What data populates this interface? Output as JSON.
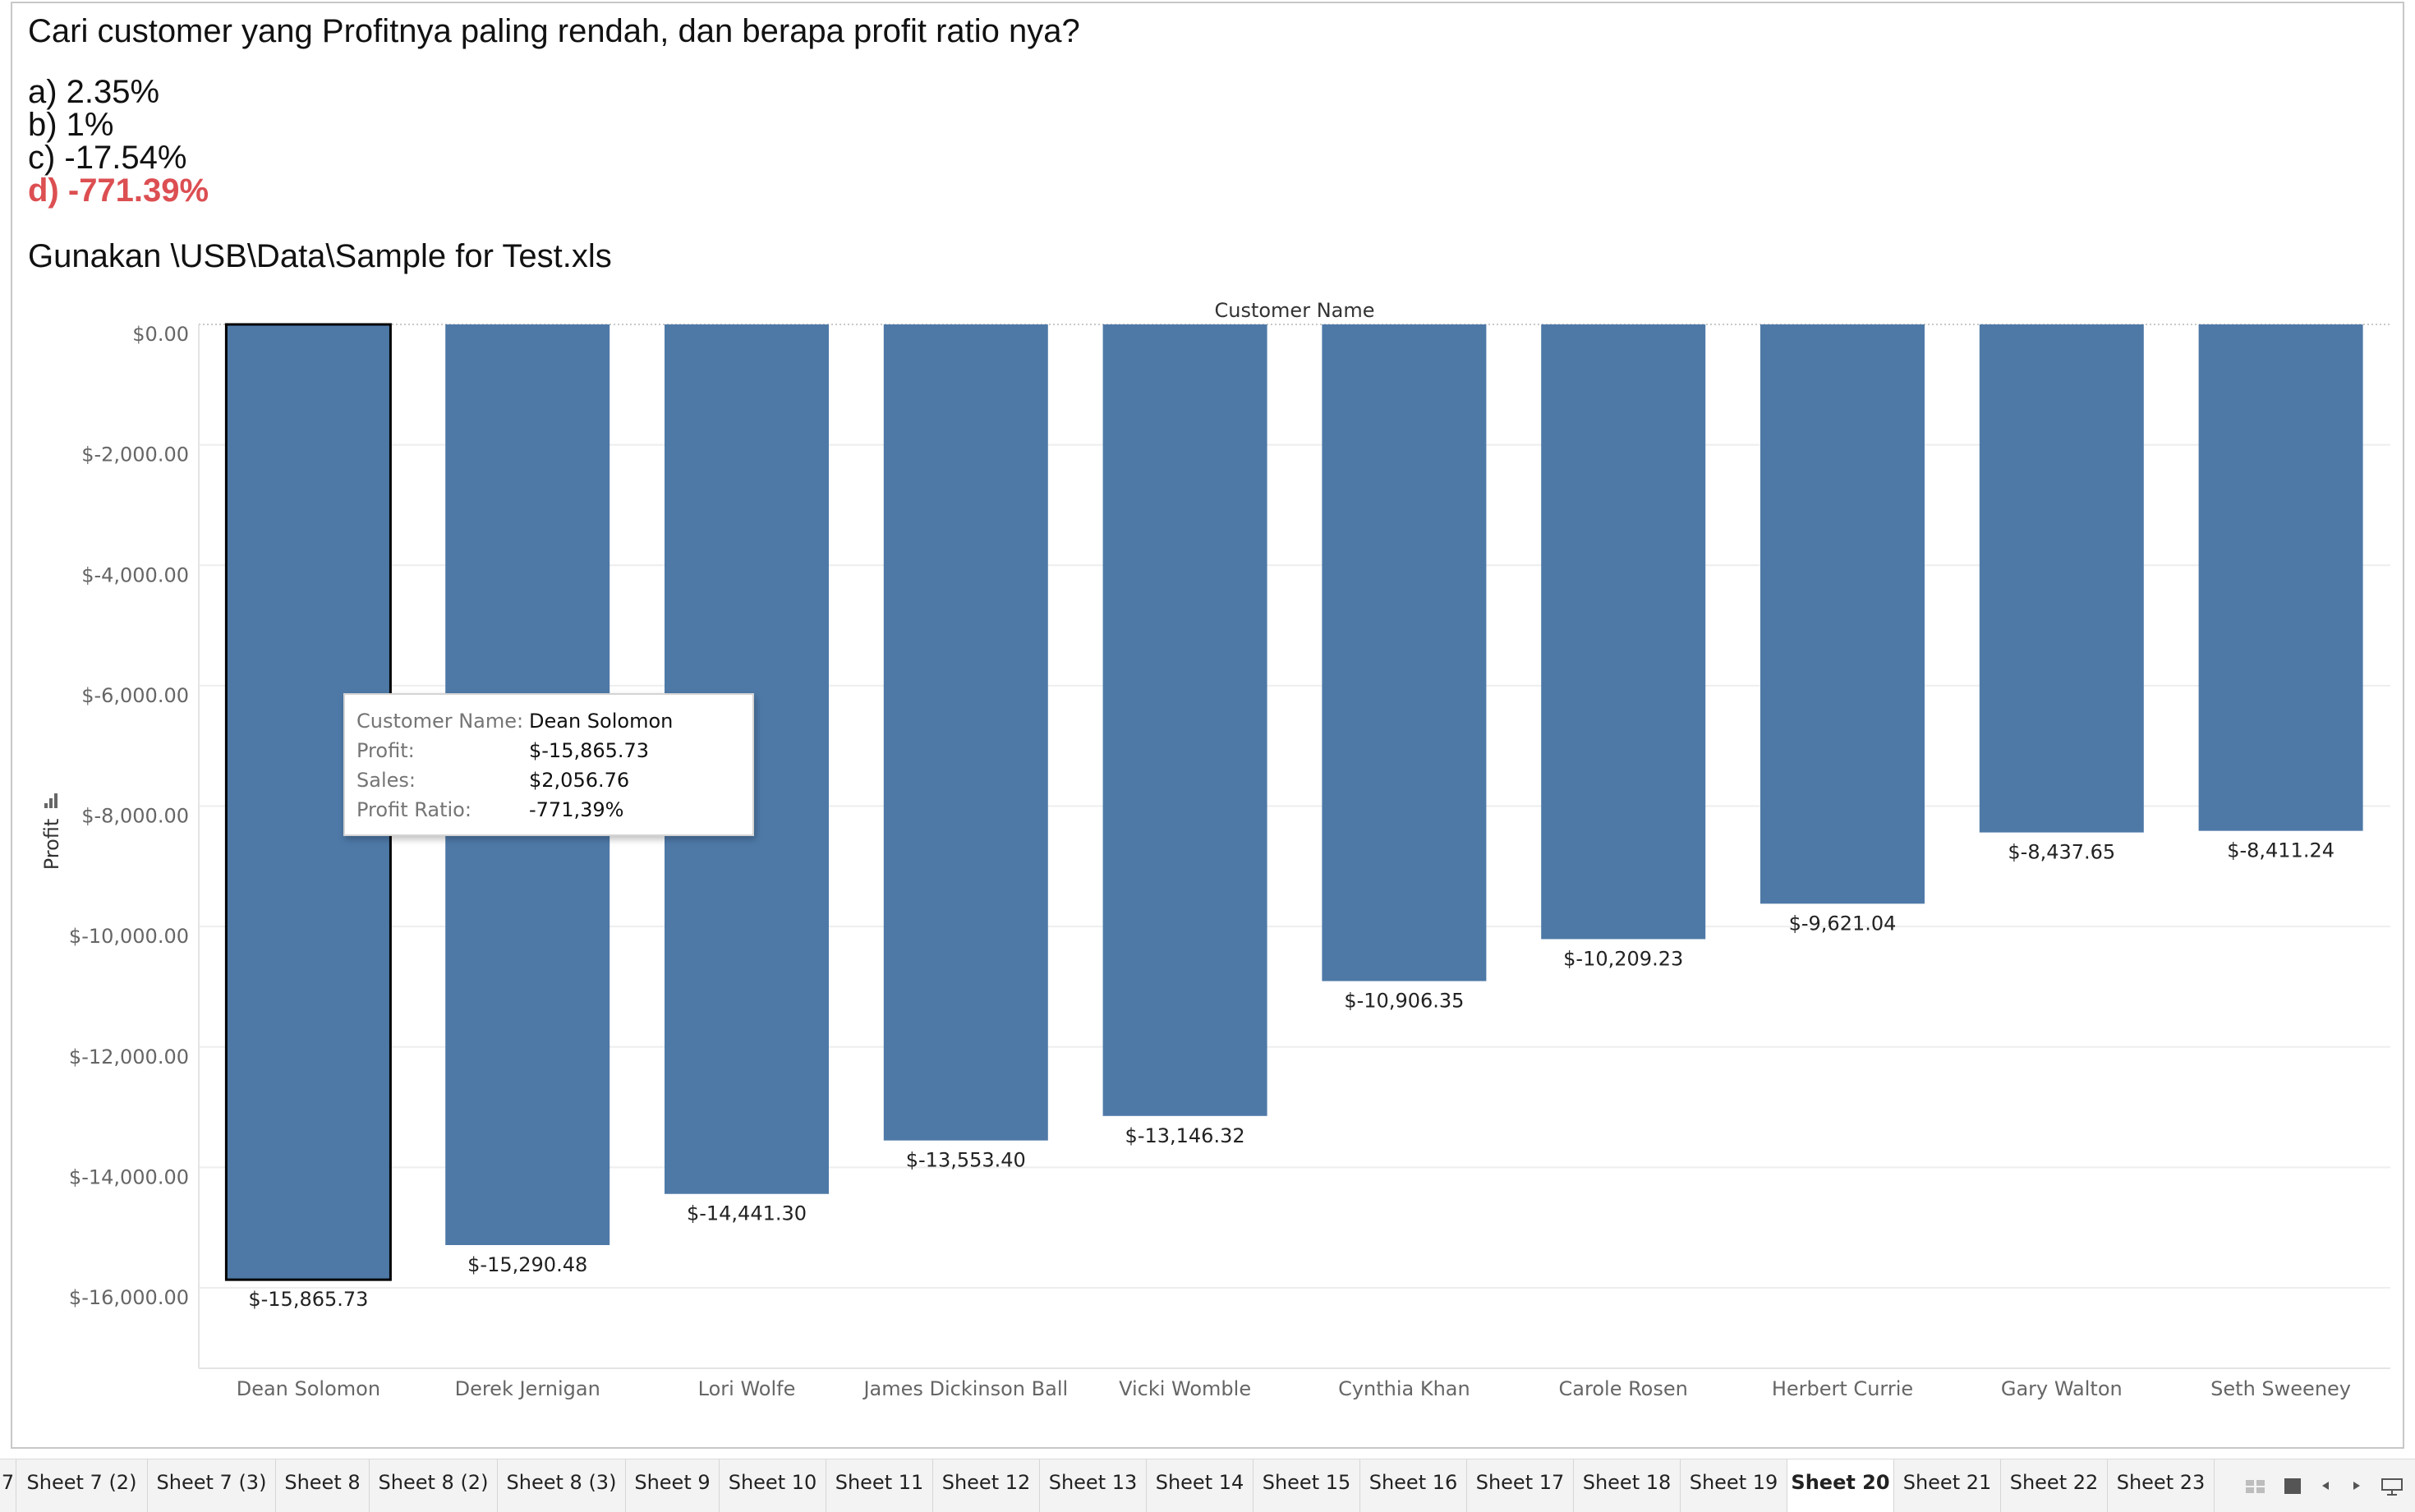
{
  "question": {
    "title": "Cari customer yang Profitnya paling rendah, dan berapa profit ratio nya?",
    "options": [
      "a) 2.35%",
      "b) 1%",
      "c) -17.54%",
      "d) -771.39%"
    ],
    "correct_option": "d) -771.39%",
    "correct_color": "#dc4f52",
    "instruction": "Gunakan \\USB\\Data\\Sample for Test.xls"
  },
  "chart_data": {
    "type": "bar",
    "title": "",
    "column_header": "Customer Name",
    "xlabel": "",
    "ylabel": "Profit",
    "categories": [
      "Dean Solomon",
      "Derek Jernigan",
      "Lori Wolfe",
      "James Dickinson Ball",
      "Vicki Womble",
      "Cynthia Khan",
      "Carole Rosen",
      "Herbert Currie",
      "Gary Walton",
      "Seth Sweeney"
    ],
    "values": [
      -15865.73,
      -15290.48,
      -14441.3,
      -13553.4,
      -13146.32,
      -10906.35,
      -10209.23,
      -9621.04,
      -8437.65,
      -8411.24
    ],
    "value_labels": [
      "$-15,865.73",
      "$-15,290.48",
      "$-14,441.30",
      "$-13,553.40",
      "$-13,146.32",
      "$-10,906.35",
      "$-10,209.23",
      "$-9,621.04",
      "$-8,437.65",
      "$-8,411.24"
    ],
    "ylim": [
      -17000,
      0
    ],
    "yticks": [
      0,
      -2000,
      -4000,
      -6000,
      -8000,
      -10000,
      -12000,
      -14000,
      -16000
    ],
    "ytick_labels": [
      "$0.00",
      "$-2,000.00",
      "$-4,000.00",
      "$-6,000.00",
      "$-8,000.00",
      "$-10,000.00",
      "$-12,000.00",
      "$-14,000.00",
      "$-16,000.00"
    ],
    "bar_color": "#4e79a7",
    "selected_index": 0,
    "grid": true
  },
  "tooltip": {
    "rows": [
      {
        "key": "Customer Name:",
        "value": "Dean Solomon"
      },
      {
        "key": "Profit:",
        "value": "$-15,865.73"
      },
      {
        "key": "Sales:",
        "value": "$2,056.76"
      },
      {
        "key": "Profit Ratio:",
        "value": "-771,39%"
      }
    ]
  },
  "tabs": {
    "items": [
      "7",
      "Sheet 7 (2)",
      "Sheet 7 (3)",
      "Sheet 8",
      "Sheet 8 (2)",
      "Sheet 8 (3)",
      "Sheet 9",
      "Sheet 10",
      "Sheet 11",
      "Sheet 12",
      "Sheet 13",
      "Sheet 14",
      "Sheet 15",
      "Sheet 16",
      "Sheet 17",
      "Sheet 18",
      "Sheet 19",
      "Sheet 20",
      "Sheet 21",
      "Sheet 22",
      "Sheet 23"
    ],
    "active": "Sheet 20"
  },
  "controls": {
    "icons": [
      "filmstrip-icon",
      "grid-icon",
      "prev-arrow-icon",
      "next-arrow-icon",
      "presentation-icon"
    ]
  }
}
